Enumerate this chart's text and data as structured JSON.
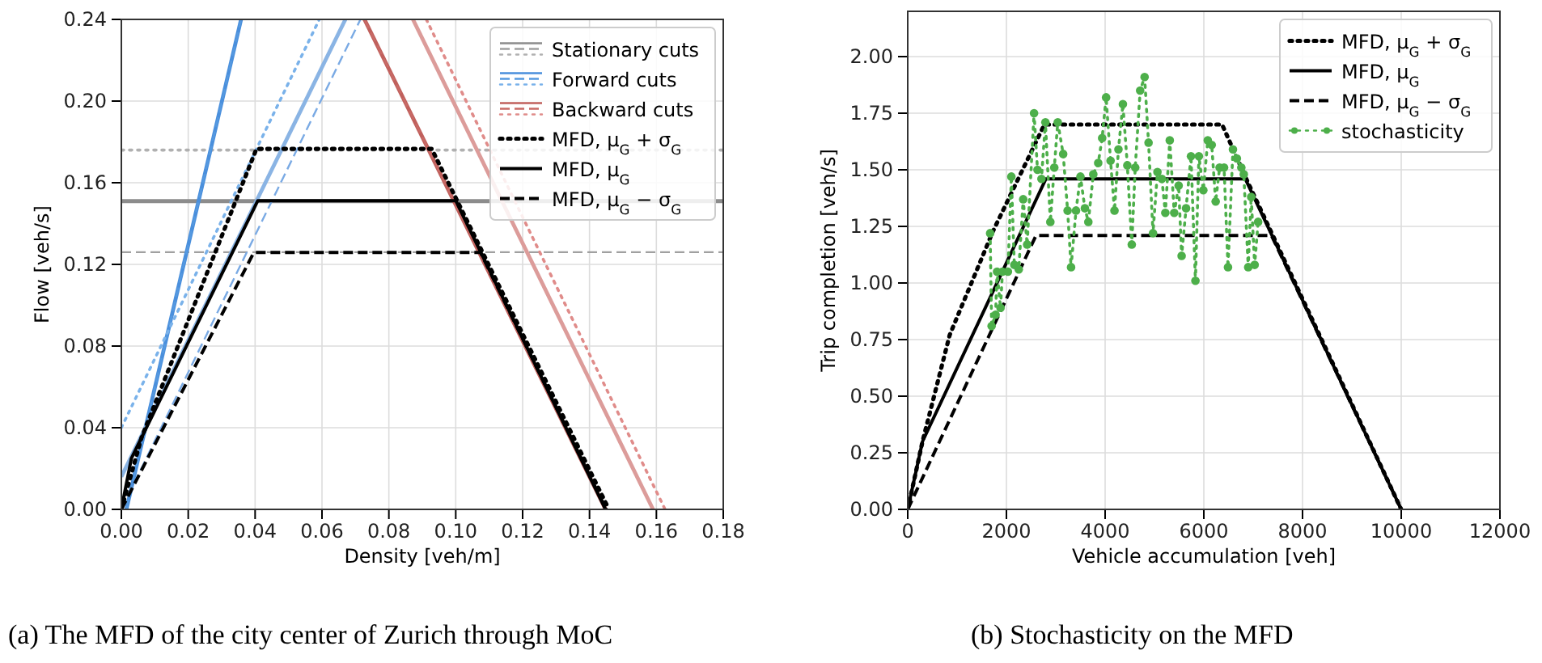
{
  "chart_data": [
    {
      "type": "line",
      "xlabel": "Density [veh/m]",
      "ylabel": "Flow [veh/s]",
      "annotations": [
        "(a) The MFD of the city center of Zurich through MoC"
      ],
      "xlim": [
        0,
        0.18
      ],
      "ylim": [
        0,
        0.24
      ],
      "xticks": [
        {
          "value": 0,
          "label": "0.00"
        },
        0.02,
        0.04,
        0.06,
        0.08,
        {
          "value": 0.1,
          "label": "0.10"
        },
        0.12,
        0.14,
        0.16,
        0.18
      ],
      "yticks": [
        {
          "value": 0,
          "label": "0.00"
        },
        0.04,
        0.08,
        0.12,
        0.16,
        {
          "value": 0.2,
          "label": "0.20"
        },
        0.24
      ],
      "grid": true,
      "legend": "top right",
      "series": [
        {
          "name": "Stationary cuts",
          "color": "#8c8c8c",
          "line_style": "solid",
          "x": [
            0,
            0.18
          ],
          "values": [
            0.151,
            0.151
          ]
        },
        {
          "color": "#a0a0a0",
          "line_style": "dashed",
          "x": [
            0,
            0.18
          ],
          "values": [
            0.126,
            0.126
          ]
        },
        {
          "color": "#b0b0b0",
          "line_style": "dotted",
          "x": [
            0,
            0.18
          ],
          "values": [
            0.176,
            0.176
          ]
        },
        {
          "name": "Forward cuts",
          "color": "#4a8fdc",
          "line_style": "solid",
          "x": [
            0.0015,
            0.0358
          ],
          "values": [
            0,
            0.24
          ]
        },
        {
          "color": "#5599e0",
          "line_style": "dashed",
          "x": [
            0.0015,
            0.0358
          ],
          "values": [
            0,
            0.24
          ]
        },
        {
          "color": "#7ab2ea",
          "line_style": "dotted",
          "x": [
            0,
            0.0592
          ],
          "values": [
            0.04,
            0.24
          ]
        },
        {
          "color": "#8ab4e4",
          "line_style": "solid",
          "x": [
            0,
            0.067
          ],
          "values": [
            0.016,
            0.24
          ]
        },
        {
          "color": "#7aaae4",
          "line_style": "dashed",
          "x": [
            0,
            0.0715
          ],
          "values": [
            0,
            0.24
          ]
        },
        {
          "name": "Backward cuts",
          "color": "#c0605c",
          "line_style": "solid",
          "x": [
            0.0727,
            0.1448
          ],
          "values": [
            0.24,
            0
          ]
        },
        {
          "color": "#c86a66",
          "line_style": "dashed",
          "x": [
            0.0727,
            0.1448
          ],
          "values": [
            0.24,
            0
          ]
        },
        {
          "color": "#dc9c9a",
          "line_style": "solid",
          "x": [
            0.0872,
            0.159
          ],
          "values": [
            0.24,
            0
          ]
        },
        {
          "color": "#e08c8a",
          "line_style": "dotted",
          "x": [
            0.0912,
            0.1626
          ],
          "values": [
            0.24,
            0
          ]
        },
        {
          "name": "MFD, μ$_{G}$ + σ$_{G}$",
          "color": "#000000",
          "line_style": "dotted",
          "x": [
            0,
            0.006,
            0.0404,
            0.0928,
            0.1458
          ],
          "values": [
            0,
            0.035,
            0.1766,
            0.1766,
            0
          ]
        },
        {
          "name": "MFD, μ$_{G}$",
          "color": "#000000",
          "line_style": "solid",
          "x": [
            0,
            0.003,
            0.0408,
            0.1,
            0.1448
          ],
          "values": [
            0,
            0.025,
            0.1512,
            0.1512,
            0
          ]
        },
        {
          "name": "MFD, μ$_{G}$ − σ$_{G}$",
          "color": "#000000",
          "line_style": "dashed",
          "x": [
            0,
            0.0396,
            0.1074,
            0.145
          ],
          "values": [
            0,
            0.1258,
            0.1258,
            0
          ]
        }
      ]
    },
    {
      "type": "line",
      "xlabel": "Vehicle accumulation [veh]",
      "ylabel": "Trip completion [veh/s]",
      "annotations": [
        "(b) Stochasticity on the MFD"
      ],
      "xlim": [
        0,
        12000
      ],
      "ylim": [
        0,
        2.2
      ],
      "xticks": [
        0,
        2000,
        4000,
        6000,
        8000,
        10000,
        12000
      ],
      "yticks": [
        {
          "value": 0,
          "label": "0.00"
        },
        0.25,
        {
          "value": 0.5,
          "label": "0.50"
        },
        0.75,
        {
          "value": 1,
          "label": "1.00"
        },
        1.25,
        {
          "value": 1.5,
          "label": "1.50"
        },
        1.75,
        {
          "value": 2,
          "label": "2.00"
        }
      ],
      "grid": true,
      "legend": "top right",
      "series": [
        {
          "name": "MFD, μ$_{G}$ + σ$_{G}$",
          "color": "#000000",
          "line_style": "dotted",
          "x": [
            0,
            300,
            850,
            1730,
            2770,
            6370,
            6860,
            10000
          ],
          "values": [
            0,
            0.3,
            0.77,
            1.23,
            1.7,
            1.7,
            1.46,
            0
          ]
        },
        {
          "name": "MFD, μ$_{G}$",
          "color": "#000000",
          "line_style": "solid",
          "x": [
            0,
            300,
            2800,
            6840,
            10000
          ],
          "values": [
            0,
            0.3,
            1.46,
            1.46,
            0
          ]
        },
        {
          "name": "MFD, μ$_{G}$ − σ$_{G}$",
          "color": "#000000",
          "line_style": "dashed",
          "x": [
            0,
            2600,
            7370,
            10000
          ],
          "values": [
            0,
            1.21,
            1.21,
            0
          ]
        },
        {
          "name": "stochasticity",
          "color": "#4daf4a",
          "line_style": "dotted",
          "marker": "circle",
          "x": [
            1670,
            1700,
            1780,
            1810,
            1880,
            1920,
            2030,
            2100,
            2160,
            2250,
            2340,
            2420,
            2560,
            2630,
            2710,
            2790,
            2890,
            2970,
            3040,
            3150,
            3240,
            3310,
            3410,
            3500,
            3590,
            3660,
            3760,
            3860,
            3940,
            4020,
            4110,
            4190,
            4270,
            4360,
            4450,
            4540,
            4610,
            4710,
            4800,
            4880,
            4970,
            5060,
            5150,
            5220,
            5310,
            5400,
            5490,
            5550,
            5640,
            5740,
            5830,
            5900,
            5990,
            6080,
            6160,
            6240,
            6320,
            6410,
            6490,
            6590,
            6670,
            6760,
            6810,
            6900,
            6960,
            7030,
            7100
          ],
          "values": [
            1.22,
            0.81,
            0.86,
            1.05,
            0.89,
            1.05,
            1.05,
            1.47,
            1.08,
            1.06,
            1.37,
            1.17,
            1.75,
            1.5,
            1.46,
            1.71,
            1.27,
            1.51,
            1.71,
            1.57,
            1.32,
            1.07,
            1.32,
            1.47,
            1.33,
            1.27,
            1.48,
            1.53,
            1.64,
            1.82,
            1.54,
            1.32,
            1.59,
            1.79,
            1.52,
            1.17,
            1.51,
            1.85,
            1.91,
            1.62,
            1.22,
            1.49,
            1.46,
            1.31,
            1.63,
            1.31,
            1.43,
            1.12,
            1.33,
            1.56,
            1.01,
            1.56,
            1.41,
            1.63,
            1.61,
            1.36,
            1.51,
            1.51,
            1.07,
            1.59,
            1.55,
            1.51,
            1.48,
            1.07,
            1.38,
            1.08,
            1.27
          ]
        }
      ]
    }
  ]
}
